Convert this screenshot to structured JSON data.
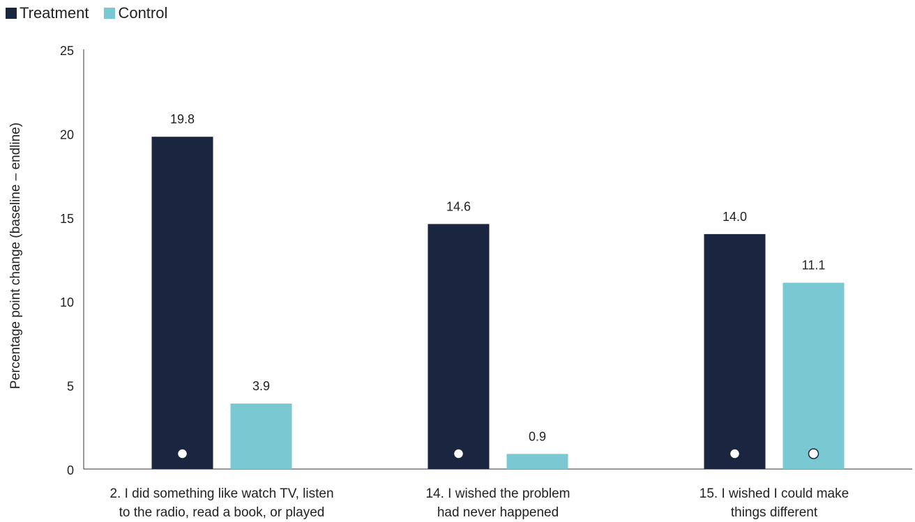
{
  "chart_data": {
    "type": "bar",
    "categories": [
      [
        "2. I did something like watch TV, listen",
        "to the radio, read a book, or played"
      ],
      [
        "14. I wished the problem",
        "had never happened"
      ],
      [
        "15. I wished I could make",
        "things different"
      ]
    ],
    "series": [
      {
        "name": "Treatment",
        "color": "#1a2640",
        "values": [
          19.8,
          14.6,
          14.0
        ],
        "labels": [
          "19.8",
          "14.6",
          "14.0"
        ],
        "marker": [
          true,
          true,
          true
        ]
      },
      {
        "name": "Control",
        "color": "#7ac8d1",
        "values": [
          3.9,
          0.9,
          11.1
        ],
        "labels": [
          "3.9",
          "0.9",
          "11.1"
        ],
        "marker": [
          false,
          false,
          true
        ]
      }
    ],
    "ylabel": "Percentage point change (baseline – endline)",
    "ylim": [
      0,
      25
    ],
    "yticks": [
      "0",
      "5",
      "10",
      "15",
      "20",
      "25"
    ],
    "legend_position": "top-left",
    "grid": false
  }
}
